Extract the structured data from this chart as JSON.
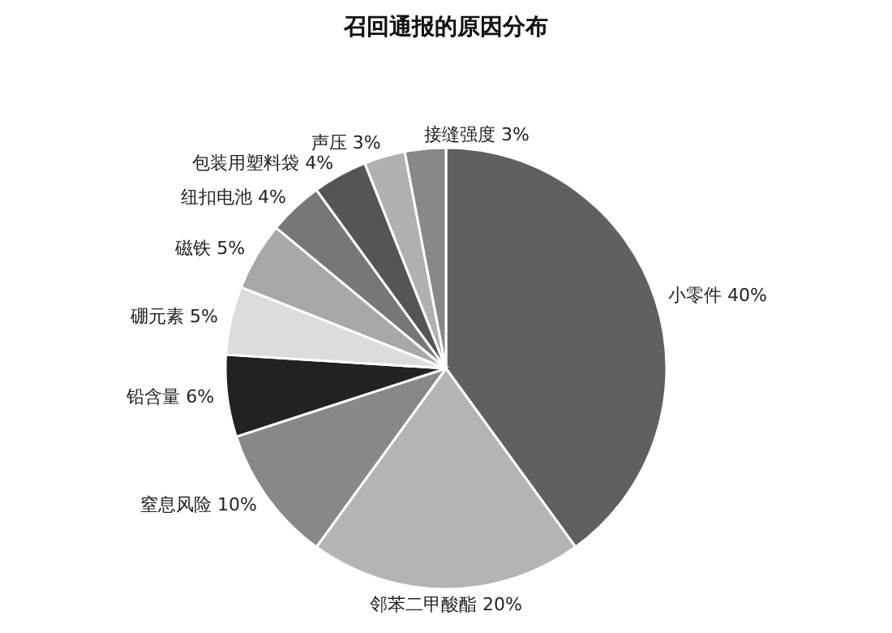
{
  "chart_data": {
    "type": "pie",
    "title": "召回通报的原因分布",
    "categories": [
      "小零件",
      "邻苯二甲酸酯",
      "窒息风险",
      "铅含量",
      "硼元素",
      "磁铁",
      "纽扣电池",
      "包装用塑料袋",
      "声压",
      "接缝强度"
    ],
    "values": [
      40,
      20,
      10,
      6,
      5,
      5,
      4,
      4,
      3,
      3
    ],
    "value_labels": [
      "40%",
      "20%",
      "10%",
      "6%",
      "5%",
      "5%",
      "4%",
      "4%",
      "3%",
      "3%"
    ],
    "colors": [
      "#606060",
      "#b4b4b4",
      "#888888",
      "#222222",
      "#dcdcdc",
      "#a8a8a8",
      "#777777",
      "#555555",
      "#b0b0b0",
      "#888888"
    ],
    "legend": false
  }
}
